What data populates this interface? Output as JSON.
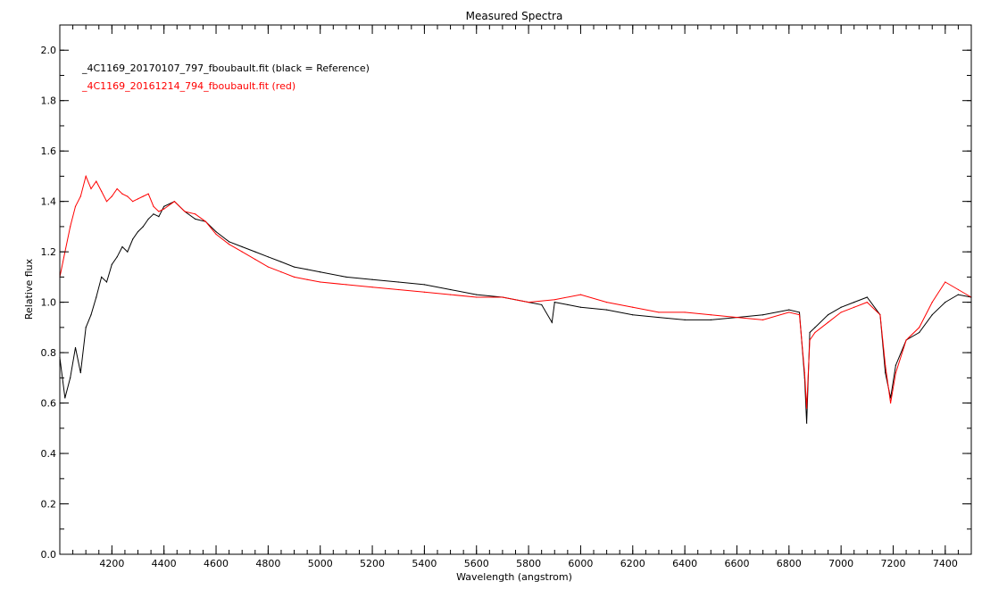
{
  "chart_data": {
    "type": "line",
    "title": "Measured Spectra",
    "xlabel": "Wavelength (angstrom)",
    "ylabel": "Relative flux",
    "xlim": [
      4000,
      7500
    ],
    "ylim": [
      0,
      2.1
    ],
    "x_ticks": [
      4200,
      4400,
      4600,
      4800,
      5000,
      5200,
      5400,
      5600,
      5800,
      6000,
      6200,
      6400,
      6600,
      6800,
      7000,
      7200,
      7400
    ],
    "x_tick_labels": [
      "4200",
      "4400",
      "4600",
      "4800",
      "5000",
      "5200",
      "5400",
      "5600",
      "5800",
      "6000",
      "6200",
      "6400",
      "6600",
      "6800",
      "7000",
      "7200",
      "7400"
    ],
    "x_minor_step": 50,
    "y_ticks": [
      0.0,
      0.2,
      0.4,
      0.6,
      0.8,
      1.0,
      1.2,
      1.4,
      1.6,
      1.8,
      2.0
    ],
    "y_tick_labels": [
      "0.0",
      "0.2",
      "0.4",
      "0.6",
      "0.8",
      "1.0",
      "1.2",
      "1.4",
      "1.6",
      "1.8",
      "2.0"
    ],
    "y_minor_step": 0.1,
    "grid": false,
    "legend_position": "top-left",
    "series": [
      {
        "name": "_4C1169_20170107_797_fboubault.fit (black = Reference)",
        "color": "#000000",
        "x": [
          4000,
          4020,
          4040,
          4060,
          4080,
          4100,
          4120,
          4140,
          4160,
          4180,
          4200,
          4220,
          4240,
          4260,
          4280,
          4300,
          4320,
          4340,
          4360,
          4380,
          4400,
          4440,
          4480,
          4520,
          4560,
          4600,
          4650,
          4700,
          4750,
          4800,
          4850,
          4900,
          4950,
          5000,
          5100,
          5200,
          5300,
          5400,
          5500,
          5600,
          5700,
          5800,
          5850,
          5890,
          5900,
          5950,
          6000,
          6100,
          6200,
          6300,
          6400,
          6500,
          6600,
          6700,
          6800,
          6840,
          6860,
          6868,
          6880,
          6900,
          6950,
          7000,
          7050,
          7100,
          7150,
          7170,
          7190,
          7210,
          7250,
          7300,
          7350,
          7400,
          7450,
          7500
        ],
        "values": [
          0.78,
          0.62,
          0.7,
          0.82,
          0.72,
          0.9,
          0.95,
          1.02,
          1.1,
          1.08,
          1.15,
          1.18,
          1.22,
          1.2,
          1.25,
          1.28,
          1.3,
          1.33,
          1.35,
          1.34,
          1.38,
          1.4,
          1.36,
          1.33,
          1.32,
          1.28,
          1.24,
          1.22,
          1.2,
          1.18,
          1.16,
          1.14,
          1.13,
          1.12,
          1.1,
          1.09,
          1.08,
          1.07,
          1.05,
          1.03,
          1.02,
          1.0,
          0.99,
          0.92,
          1.0,
          0.99,
          0.98,
          0.97,
          0.95,
          0.94,
          0.93,
          0.93,
          0.94,
          0.95,
          0.97,
          0.96,
          0.7,
          0.52,
          0.88,
          0.9,
          0.95,
          0.98,
          1.0,
          1.02,
          0.95,
          0.72,
          0.62,
          0.75,
          0.85,
          0.88,
          0.95,
          1.0,
          1.03,
          1.02
        ]
      },
      {
        "name": "_4C1169_20161214_794_fboubault.fit (red)",
        "color": "#ff0000",
        "x": [
          4000,
          4020,
          4040,
          4060,
          4080,
          4100,
          4120,
          4140,
          4160,
          4180,
          4200,
          4220,
          4240,
          4260,
          4280,
          4300,
          4320,
          4340,
          4360,
          4380,
          4400,
          4440,
          4480,
          4520,
          4560,
          4600,
          4650,
          4700,
          4750,
          4800,
          4850,
          4900,
          4950,
          5000,
          5100,
          5200,
          5300,
          5400,
          5500,
          5600,
          5700,
          5800,
          5900,
          6000,
          6100,
          6200,
          6300,
          6400,
          6500,
          6600,
          6700,
          6800,
          6840,
          6860,
          6868,
          6880,
          6900,
          6950,
          7000,
          7050,
          7100,
          7150,
          7170,
          7190,
          7210,
          7250,
          7300,
          7350,
          7400,
          7450,
          7500
        ],
        "values": [
          1.1,
          1.2,
          1.3,
          1.38,
          1.42,
          1.5,
          1.45,
          1.48,
          1.44,
          1.4,
          1.42,
          1.45,
          1.43,
          1.42,
          1.4,
          1.41,
          1.42,
          1.43,
          1.38,
          1.36,
          1.37,
          1.4,
          1.36,
          1.35,
          1.32,
          1.27,
          1.23,
          1.2,
          1.17,
          1.14,
          1.12,
          1.1,
          1.09,
          1.08,
          1.07,
          1.06,
          1.05,
          1.04,
          1.03,
          1.02,
          1.02,
          1.0,
          1.01,
          1.03,
          1.0,
          0.98,
          0.96,
          0.96,
          0.95,
          0.94,
          0.93,
          0.96,
          0.95,
          0.72,
          0.58,
          0.85,
          0.88,
          0.92,
          0.96,
          0.98,
          1.0,
          0.95,
          0.75,
          0.6,
          0.72,
          0.85,
          0.9,
          1.0,
          1.08,
          1.05,
          1.02
        ]
      }
    ]
  }
}
